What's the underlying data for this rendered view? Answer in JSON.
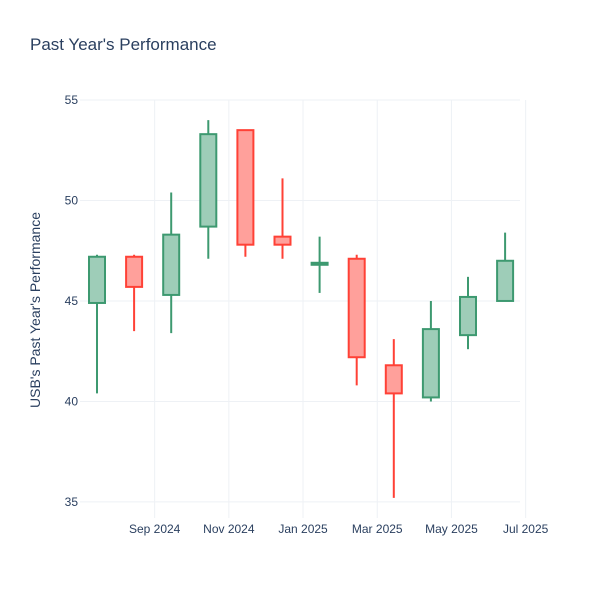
{
  "chart_data": {
    "type": "candlestick",
    "title": "Past Year's Performance",
    "xlabel": "",
    "ylabel": "USB's Past Year's Performance",
    "ylim": [
      34.2,
      55
    ],
    "yticks": [
      35,
      40,
      45,
      50,
      55
    ],
    "xtick_labels": [
      "Sep 2024",
      "Nov 2024",
      "Jan 2025",
      "Mar 2025",
      "May 2025",
      "Jul 2025"
    ],
    "grid": true,
    "colors": {
      "increasing_line": "#3d9970",
      "increasing_fill": "#9ecdb8",
      "decreasing_line": "#ff4136",
      "decreasing_fill": "#ffa09b"
    },
    "candles": [
      {
        "date": "2024-07",
        "open": 44.9,
        "high": 47.3,
        "low": 40.4,
        "close": 47.2
      },
      {
        "date": "2024-08",
        "open": 47.2,
        "high": 47.3,
        "low": 43.5,
        "close": 45.7
      },
      {
        "date": "2024-09",
        "open": 45.3,
        "high": 50.4,
        "low": 43.4,
        "close": 48.3
      },
      {
        "date": "2024-10",
        "open": 48.7,
        "high": 54.0,
        "low": 47.1,
        "close": 53.3
      },
      {
        "date": "2024-11",
        "open": 53.5,
        "high": 53.5,
        "low": 47.2,
        "close": 47.8
      },
      {
        "date": "2024-12",
        "open": 48.2,
        "high": 51.1,
        "low": 47.1,
        "close": 47.8
      },
      {
        "date": "2025-01",
        "open": 46.8,
        "high": 48.2,
        "low": 45.4,
        "close": 46.9
      },
      {
        "date": "2025-02",
        "open": 47.1,
        "high": 47.3,
        "low": 40.8,
        "close": 42.2
      },
      {
        "date": "2025-03",
        "open": 41.8,
        "high": 43.1,
        "low": 35.2,
        "close": 40.4
      },
      {
        "date": "2025-04",
        "open": 40.2,
        "high": 45.0,
        "low": 40.0,
        "close": 43.6
      },
      {
        "date": "2025-05",
        "open": 43.3,
        "high": 46.2,
        "low": 42.6,
        "close": 45.2
      },
      {
        "date": "2025-06",
        "open": 45.0,
        "high": 48.4,
        "low": 45.0,
        "close": 47.0
      }
    ]
  }
}
